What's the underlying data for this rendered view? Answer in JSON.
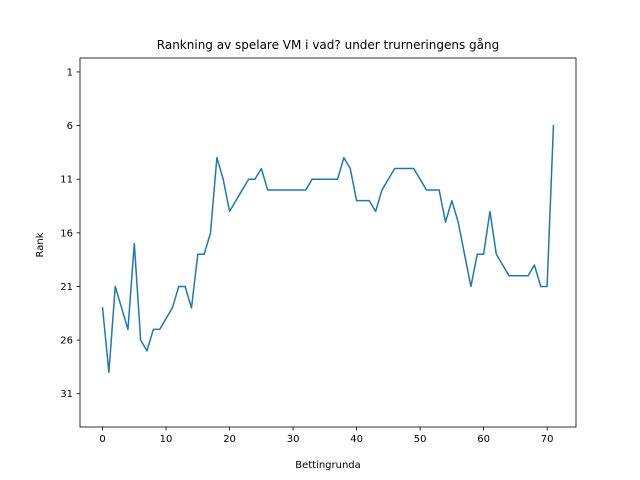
{
  "chart_data": {
    "type": "line",
    "title": "Rankning av spelare VM i vad? under trurneringens gång",
    "xlabel": "Bettingrunda",
    "ylabel": "Rank",
    "xlim": [
      -3.55,
      74.55
    ],
    "ylim": [
      34.1,
      -0.3
    ],
    "y_inverted": true,
    "grid": false,
    "x_ticks": [
      0,
      10,
      20,
      30,
      40,
      50,
      60,
      70
    ],
    "y_ticks": [
      1,
      6,
      11,
      16,
      21,
      26,
      31
    ],
    "series": [
      {
        "color": "#1f77b4",
        "x": [
          0,
          1,
          2,
          3,
          4,
          5,
          6,
          7,
          8,
          9,
          10,
          11,
          12,
          13,
          14,
          15,
          16,
          17,
          18,
          19,
          20,
          21,
          22,
          23,
          24,
          25,
          26,
          27,
          28,
          29,
          30,
          31,
          32,
          33,
          34,
          35,
          36,
          37,
          38,
          39,
          40,
          41,
          42,
          43,
          44,
          45,
          46,
          47,
          48,
          49,
          50,
          51,
          52,
          53,
          54,
          55,
          56,
          57,
          58,
          59,
          60,
          61,
          62,
          63,
          64,
          65,
          66,
          67,
          68,
          69,
          70,
          71
        ],
        "values": [
          23,
          29,
          21,
          23,
          25,
          17,
          26,
          27,
          25,
          25,
          24,
          23,
          21,
          21,
          23,
          18,
          18,
          16,
          9,
          11,
          14,
          13,
          12,
          11,
          11,
          10,
          12,
          12,
          12,
          12,
          12,
          12,
          12,
          11,
          11,
          11,
          11,
          11,
          9,
          10,
          13,
          13,
          13,
          14,
          12,
          11,
          10,
          10,
          10,
          10,
          11,
          12,
          12,
          12,
          15,
          13,
          15,
          18,
          21,
          18,
          18,
          14,
          18,
          19,
          20,
          20,
          20,
          20,
          19,
          21,
          21,
          6
        ]
      }
    ]
  }
}
